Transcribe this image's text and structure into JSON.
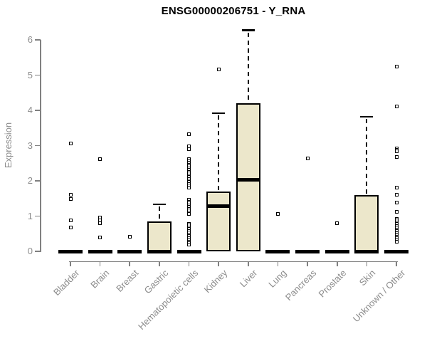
{
  "chart_data": {
    "type": "boxplot",
    "title": "ENSG00000206751 - Y_RNA",
    "xlabel": "",
    "ylabel": "Expression",
    "ylim": [
      0,
      6.3
    ],
    "yticks": [
      0,
      1,
      2,
      3,
      4,
      5,
      6
    ],
    "grid": false,
    "legend": "none",
    "categories": [
      "Bladder",
      "Brain",
      "Breast",
      "Gastric",
      "Hematopoietic cells",
      "Kidney",
      "Liver",
      "Lung",
      "Pancreas",
      "Prostate",
      "Skin",
      "Unknown / Other"
    ],
    "series": [
      {
        "name": "Bladder",
        "q1": 0,
        "median": 0,
        "q3": 0,
        "whisker_low": 0,
        "whisker_high": 0,
        "outliers": [
          3.06,
          1.6,
          1.48,
          0.88,
          0.68
        ]
      },
      {
        "name": "Brain",
        "q1": 0,
        "median": 0,
        "q3": 0,
        "whisker_low": 0,
        "whisker_high": 0,
        "outliers": [
          2.62,
          0.96,
          0.87,
          0.79,
          0.4
        ]
      },
      {
        "name": "Breast",
        "q1": 0,
        "median": 0,
        "q3": 0,
        "whisker_low": 0,
        "whisker_high": 0,
        "outliers": [
          0.42
        ]
      },
      {
        "name": "Gastric",
        "q1": 0,
        "median": 0,
        "q3": 0.85,
        "whisker_low": 0,
        "whisker_high": 1.33,
        "outliers": []
      },
      {
        "name": "Hematopoietic cells",
        "q1": 0,
        "median": 0,
        "q3": 0,
        "whisker_low": 0,
        "whisker_high": 0,
        "outliers": [
          3.32,
          2.97,
          2.9,
          2.61,
          2.56,
          2.51,
          2.46,
          2.41,
          2.36,
          2.31,
          2.26,
          2.21,
          2.16,
          2.11,
          2.06,
          2.01,
          1.96,
          1.91,
          1.86,
          1.81,
          1.46,
          1.41,
          1.36,
          1.31,
          1.26,
          1.21,
          1.16,
          1.11,
          1.06,
          0.78,
          0.73,
          0.68,
          0.63,
          0.58,
          0.53,
          0.48,
          0.43,
          0.38,
          0.33,
          0.28,
          0.23,
          0.19
        ]
      },
      {
        "name": "Kidney",
        "q1": 0,
        "median": 1.28,
        "q3": 1.69,
        "whisker_low": 0,
        "whisker_high": 3.92,
        "outliers": [
          5.17
        ]
      },
      {
        "name": "Liver",
        "q1": 0,
        "median": 2.04,
        "q3": 4.2,
        "whisker_low": 0,
        "whisker_high": 6.27,
        "outliers": []
      },
      {
        "name": "Lung",
        "q1": 0,
        "median": 0,
        "q3": 0,
        "whisker_low": 0,
        "whisker_high": 0,
        "outliers": [
          1.06
        ]
      },
      {
        "name": "Pancreas",
        "q1": 0,
        "median": 0,
        "q3": 0,
        "whisker_low": 0,
        "whisker_high": 0,
        "outliers": [
          2.64
        ]
      },
      {
        "name": "Prostate",
        "q1": 0,
        "median": 0,
        "q3": 0,
        "whisker_low": 0,
        "whisker_high": 0,
        "outliers": [
          0.8
        ]
      },
      {
        "name": "Skin",
        "q1": 0,
        "median": 0,
        "q3": 1.6,
        "whisker_low": 0,
        "whisker_high": 3.82,
        "outliers": []
      },
      {
        "name": "Unknown / Other",
        "q1": 0,
        "median": 0,
        "q3": 0,
        "whisker_low": 0,
        "whisker_high": 0,
        "outliers": [
          5.25,
          4.12,
          2.92,
          2.88,
          2.84,
          2.67,
          1.8,
          1.6,
          1.38,
          1.12,
          0.92,
          0.87,
          0.82,
          0.77,
          0.72,
          0.67,
          0.62,
          0.57,
          0.52,
          0.47,
          0.42,
          0.37,
          0.32,
          0.27
        ]
      }
    ]
  },
  "colors": {
    "box_fill": "#ece7cb",
    "box_stroke": "#000000",
    "axis_line": "#808080",
    "axis_text": "#8c8c8c",
    "title_text": "#000000"
  }
}
